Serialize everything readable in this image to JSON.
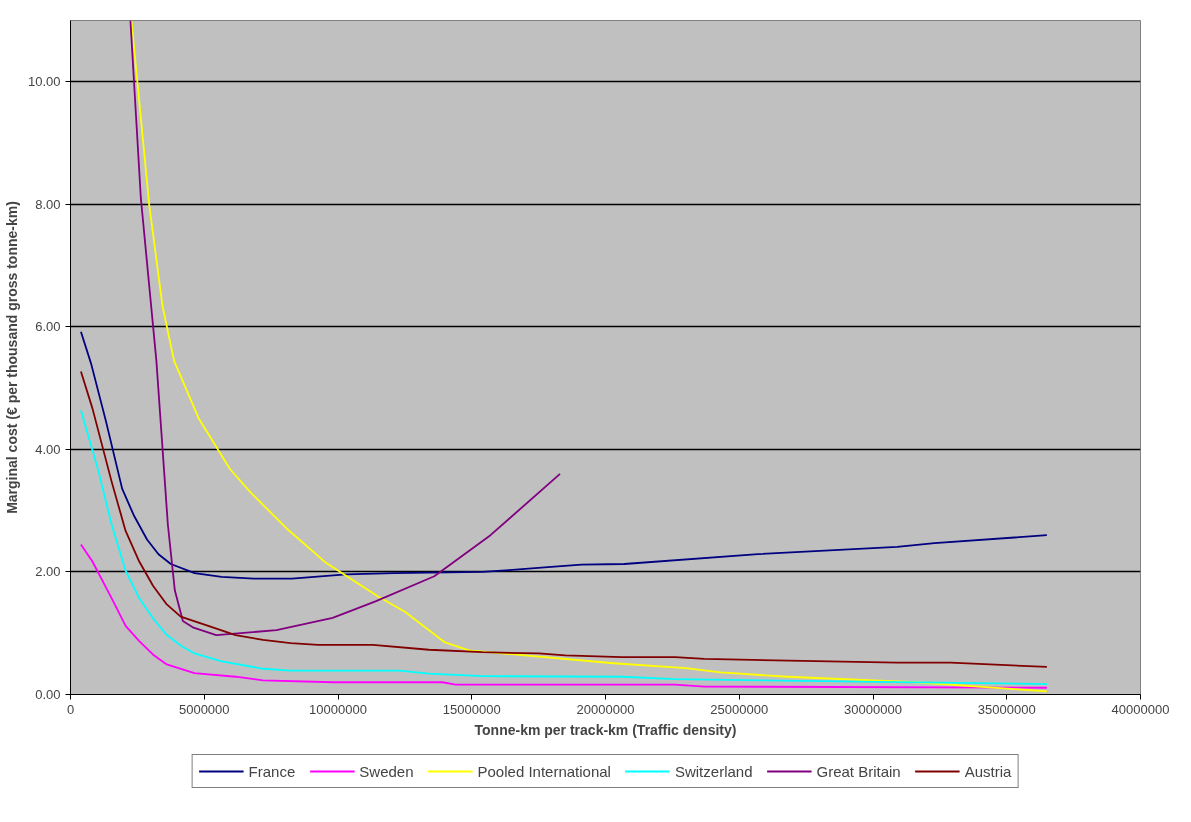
{
  "chart_data": {
    "type": "line",
    "xlabel": "Tonne-km per track-km (Traffic density)",
    "ylabel": "Marginal cost (€ per thousand gross tonne-km)",
    "xlim": [
      0,
      40000000
    ],
    "xticks": [
      0,
      5000000,
      10000000,
      15000000,
      20000000,
      25000000,
      30000000,
      35000000,
      40000000
    ],
    "ylim": [
      0,
      11
    ],
    "yticks": [
      {
        "value": 0,
        "label": "0.00"
      },
      {
        "value": 2,
        "label": "2.00"
      },
      {
        "value": 4,
        "label": "4.00"
      },
      {
        "value": 6,
        "label": "6.00"
      },
      {
        "value": 8,
        "label": "8.00"
      },
      {
        "value": 10,
        "label": "10.00"
      }
    ],
    "grid": "y",
    "legend": "bottom",
    "marker": "none",
    "line_style": "solid",
    "series": [
      {
        "name": "France",
        "color": "#000080",
        "x": [
          390000,
          770000,
          1320000,
          1930000,
          2360000,
          2860000,
          3290000,
          3750000,
          4640000,
          5650000,
          6850000,
          8280000,
          10300000,
          12100000,
          15400000,
          16400000,
          17600000,
          19100000,
          20700000,
          25700000,
          30900000,
          32300000,
          36500000
        ],
        "values": [
          5.92,
          5.4,
          4.47,
          3.36,
          2.93,
          2.53,
          2.29,
          2.13,
          1.98,
          1.92,
          1.89,
          1.89,
          1.96,
          1.98,
          2.0,
          2.03,
          2.07,
          2.12,
          2.13,
          2.29,
          2.41,
          2.47,
          2.6
        ]
      },
      {
        "name": "Sweden",
        "color": "#ff00ff",
        "x": [
          390000,
          820000,
          1540000,
          2060000,
          2570000,
          3090000,
          3600000,
          4630000,
          6170000,
          7200000,
          9800000,
          13900000,
          14400000,
          22600000,
          23700000,
          36500000
        ],
        "values": [
          2.45,
          2.17,
          1.57,
          1.12,
          0.87,
          0.65,
          0.49,
          0.35,
          0.29,
          0.23,
          0.2,
          0.2,
          0.16,
          0.16,
          0.13,
          0.11
        ]
      },
      {
        "name": "Pooled International",
        "color": "#ffff00",
        "x": [
          2280000,
          2940000,
          3440000,
          3870000,
          4800000,
          5960000,
          6730000,
          8080000,
          9520000,
          11500000,
          12500000,
          14000000,
          14900000,
          20300000,
          23000000,
          24300000,
          26800000,
          31600000,
          36500000
        ],
        "values": [
          11.0,
          8.0,
          6.34,
          5.45,
          4.5,
          3.68,
          3.3,
          2.71,
          2.16,
          1.6,
          1.35,
          0.85,
          0.72,
          0.51,
          0.43,
          0.36,
          0.29,
          0.2,
          0.05
        ]
      },
      {
        "name": "Switzerland",
        "color": "#00ffff",
        "x": [
          390000,
          1030000,
          1540000,
          2060000,
          2570000,
          3090000,
          3600000,
          4120000,
          4630000,
          5660000,
          7200000,
          8230000,
          12300000,
          13400000,
          15400000,
          20600000,
          22600000,
          36500000
        ],
        "values": [
          4.64,
          3.67,
          2.77,
          2.02,
          1.57,
          1.24,
          0.97,
          0.8,
          0.67,
          0.54,
          0.42,
          0.39,
          0.39,
          0.34,
          0.3,
          0.29,
          0.25,
          0.17
        ]
      },
      {
        "name": "Great Britain",
        "color": "#800080",
        "x": [
          2240000,
          2630000,
          3210000,
          3640000,
          3900000,
          4200000,
          4600000,
          5450000,
          7700000,
          9800000,
          11400000,
          13600000,
          15700000,
          18300000
        ],
        "values": [
          11.0,
          8.1,
          5.45,
          2.77,
          1.7,
          1.2,
          1.09,
          0.97,
          1.05,
          1.25,
          1.52,
          1.93,
          2.6,
          3.6
        ]
      },
      {
        "name": "Austria",
        "color": "#800000",
        "x": [
          390000,
          820000,
          1540000,
          2060000,
          2570000,
          3090000,
          3600000,
          4120000,
          5150000,
          6170000,
          7200000,
          8230000,
          9260000,
          11300000,
          13400000,
          15400000,
          17500000,
          18500000,
          20600000,
          22600000,
          23700000,
          30900000,
          32900000,
          36500000
        ],
        "values": [
          5.27,
          4.67,
          3.47,
          2.67,
          2.17,
          1.77,
          1.47,
          1.27,
          1.12,
          0.97,
          0.89,
          0.84,
          0.81,
          0.81,
          0.73,
          0.69,
          0.67,
          0.64,
          0.61,
          0.61,
          0.58,
          0.52,
          0.52,
          0.45
        ]
      }
    ]
  }
}
